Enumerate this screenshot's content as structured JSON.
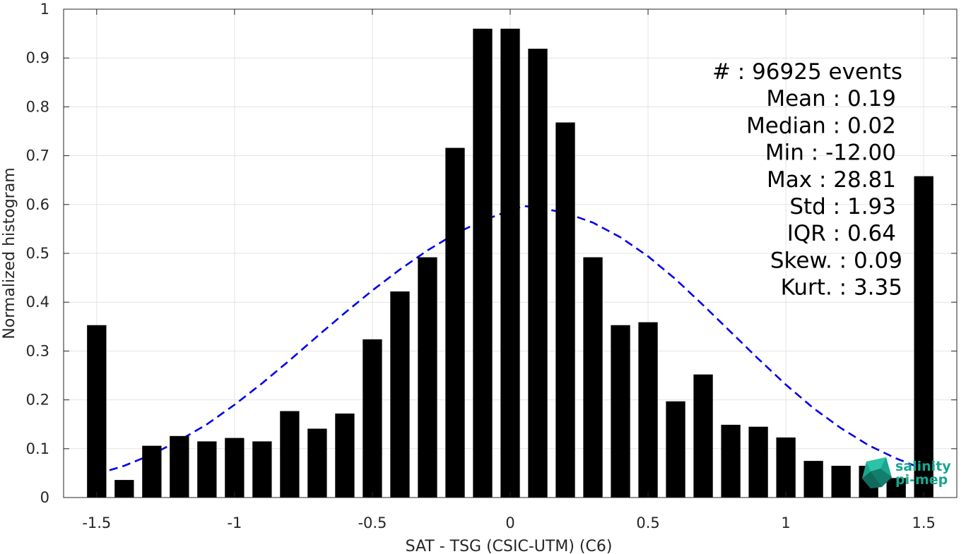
{
  "colors": {
    "bars": "#000000",
    "fit_curve": "#0000ee",
    "grid": "#e3e3e3",
    "axes": "#262626",
    "logo": "#1aa58f"
  },
  "chart_data": {
    "type": "bar",
    "title": "",
    "xlabel": "SAT - TSG (CSIC-UTM) (C6)",
    "ylabel": "Normalized histogram",
    "xlim": [
      -1.62,
      1.62
    ],
    "ylim": [
      0,
      1
    ],
    "grid": true,
    "x_ticks": [
      -1.5,
      -1,
      -0.5,
      0,
      0.5,
      1,
      1.5
    ],
    "x_tick_labels": [
      "-1.5",
      "-1",
      "-0.5",
      "0",
      "0.5",
      "1",
      "1.5"
    ],
    "y_ticks": [
      0,
      0.1,
      0.2,
      0.3,
      0.4,
      0.5,
      0.6,
      0.7,
      0.8,
      0.9,
      1
    ],
    "y_tick_labels": [
      "0",
      "0.1",
      "0.2",
      "0.3",
      "0.4",
      "0.5",
      "0.6",
      "0.7",
      "0.8",
      "0.9",
      "1"
    ],
    "bar_width": 0.07,
    "bars": {
      "x": [
        -1.5,
        -1.4,
        -1.3,
        -1.2,
        -1.1,
        -1.0,
        -0.9,
        -0.8,
        -0.7,
        -0.6,
        -0.5,
        -0.4,
        -0.3,
        -0.2,
        -0.1,
        0.0,
        0.1,
        0.2,
        0.3,
        0.4,
        0.5,
        0.6,
        0.7,
        0.8,
        0.9,
        1.0,
        1.1,
        1.2,
        1.3,
        1.4,
        1.5
      ],
      "values": [
        0.353,
        0.036,
        0.106,
        0.126,
        0.115,
        0.122,
        0.115,
        0.177,
        0.141,
        0.172,
        0.324,
        0.422,
        0.492,
        0.716,
        0.96,
        0.96,
        0.919,
        0.768,
        0.492,
        0.353,
        0.359,
        0.197,
        0.252,
        0.149,
        0.145,
        0.123,
        0.075,
        0.065,
        0.065,
        0.04,
        0.658
      ]
    },
    "fit_curve": {
      "style": "dashed",
      "x": [
        -1.5,
        -1.4,
        -1.3,
        -1.2,
        -1.1,
        -1.0,
        -0.9,
        -0.8,
        -0.7,
        -0.6,
        -0.5,
        -0.4,
        -0.3,
        -0.2,
        -0.1,
        0.0,
        0.05,
        0.1,
        0.2,
        0.3,
        0.4,
        0.5,
        0.6,
        0.7,
        0.8,
        0.9,
        1.0,
        1.1,
        1.2,
        1.3,
        1.4,
        1.5
      ],
      "y": [
        0.048,
        0.065,
        0.088,
        0.117,
        0.15,
        0.19,
        0.234,
        0.281,
        0.33,
        0.378,
        0.424,
        0.467,
        0.506,
        0.54,
        0.567,
        0.588,
        0.597,
        0.594,
        0.583,
        0.563,
        0.533,
        0.494,
        0.447,
        0.394,
        0.339,
        0.284,
        0.231,
        0.183,
        0.142,
        0.107,
        0.08,
        0.058
      ]
    },
    "stats_box": {
      "placement": "top-right",
      "lines": [
        "#  : 96925 events",
        "Mean : 0.19",
        "Median : 0.02",
        "Min : -12.00",
        "Max : 28.81",
        "Std : 1.93",
        "IQR : 0.64",
        "Skew. : 0.09",
        "Kurt. : 3.35"
      ]
    }
  },
  "logo": {
    "line1": "salinity",
    "line2": "pi-mep",
    "icon": "pi-mep-logo-icon",
    "placement": "bottom-right"
  }
}
